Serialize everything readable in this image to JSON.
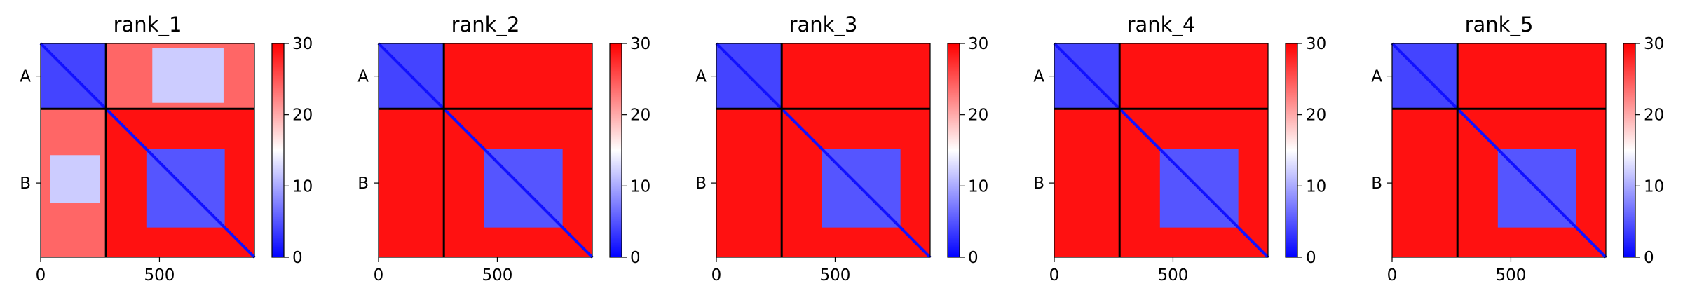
{
  "chart_data": [
    {
      "type": "heatmap",
      "title": "rank_1",
      "x_ticks": [
        0,
        500
      ],
      "y_ticks": [
        "A",
        "B"
      ],
      "chain_boundary": 275,
      "total_length": 900,
      "colorbar": {
        "min": 0,
        "max": 30,
        "ticks": [
          0,
          10,
          20,
          30
        ],
        "colormap": "bwr"
      },
      "approx_values": {
        "A_A": 4,
        "A_B": 24,
        "B_A": 24,
        "B_B": 5,
        "B_B_block": [
          445,
          775
        ],
        "A_B_block": [
          470,
          770
        ]
      }
    },
    {
      "type": "heatmap",
      "title": "rank_2",
      "x_ticks": [
        0,
        500
      ],
      "y_ticks": [
        "A",
        "B"
      ],
      "chain_boundary": 275,
      "total_length": 900,
      "colorbar": {
        "min": 0,
        "max": 30,
        "ticks": [
          0,
          10,
          20,
          30
        ],
        "colormap": "bwr"
      },
      "approx_values": {
        "A_A": 4,
        "A_B": 29,
        "B_A": 29,
        "B_B": 5,
        "B_B_block": [
          445,
          775
        ]
      }
    },
    {
      "type": "heatmap",
      "title": "rank_3",
      "x_ticks": [
        0,
        500
      ],
      "y_ticks": [
        "A",
        "B"
      ],
      "chain_boundary": 275,
      "total_length": 900,
      "colorbar": {
        "min": 0,
        "max": 30,
        "ticks": [
          0,
          10,
          20,
          30
        ],
        "colormap": "bwr"
      },
      "approx_values": {
        "A_A": 4,
        "A_B": 29,
        "B_A": 29,
        "B_B": 5,
        "B_B_block": [
          445,
          775
        ]
      }
    },
    {
      "type": "heatmap",
      "title": "rank_4",
      "x_ticks": [
        0,
        500
      ],
      "y_ticks": [
        "A",
        "B"
      ],
      "chain_boundary": 275,
      "total_length": 900,
      "colorbar": {
        "min": 0,
        "max": 30,
        "ticks": [
          0,
          10,
          20,
          30
        ],
        "colormap": "bwr"
      },
      "approx_values": {
        "A_A": 4,
        "A_B": 29,
        "B_A": 29,
        "B_B": 5,
        "B_B_block": [
          445,
          775
        ]
      }
    },
    {
      "type": "heatmap",
      "title": "rank_5",
      "x_ticks": [
        0,
        500
      ],
      "y_ticks": [
        "A",
        "B"
      ],
      "chain_boundary": 275,
      "total_length": 900,
      "colorbar": {
        "min": 0,
        "max": 30,
        "ticks": [
          0,
          10,
          20,
          30
        ],
        "colormap": "bwr"
      },
      "approx_values": {
        "A_A": 4,
        "A_B": 29,
        "B_A": 29,
        "B_B": 5,
        "B_B_block": [
          445,
          775
        ]
      }
    }
  ]
}
